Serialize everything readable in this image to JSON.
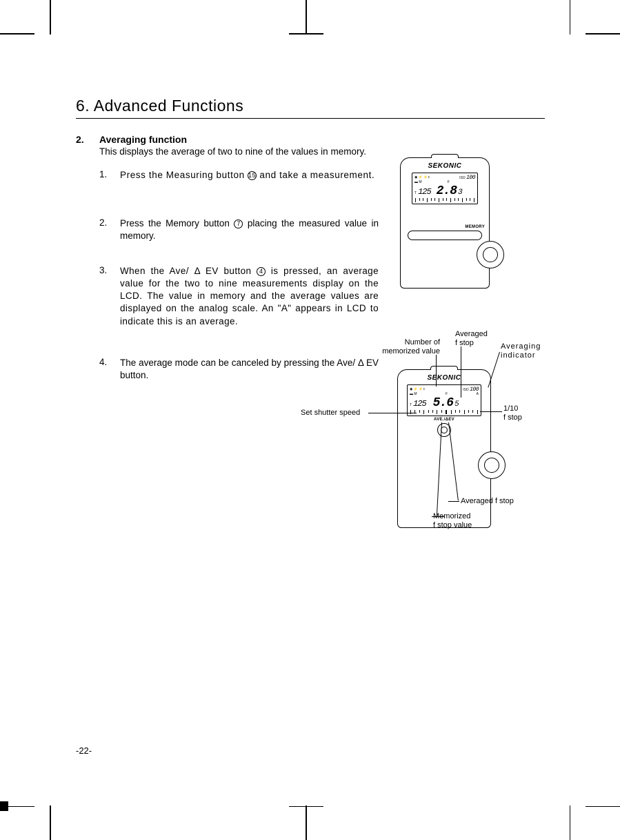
{
  "chapter": "6.  Advanced Functions",
  "section": {
    "num": "2.",
    "title": "Averaging function",
    "intro": "This displays the average of two to nine of the values in memory."
  },
  "steps": [
    {
      "num": "1.",
      "pre": "Press the Measuring button ",
      "ref": "15",
      "post": "  and take a measurement.",
      "spacing": "0.6px"
    },
    {
      "num": "2.",
      "pre": "Press the Memory button ",
      "ref": "7",
      "post": "  placing the measured value in memory.",
      "spacing": "0px"
    },
    {
      "num": "3.",
      "pre": "When the Ave/ Δ  EV button ",
      "ref": "4",
      "post": " is pressed, an average value for the two to nine measurements display on the LCD. The value in memory and the average values are displayed on the analog scale. An \"A\" appears in LCD to indicate this is an average.",
      "spacing": "0.4px"
    },
    {
      "num": "4.",
      "pre": "The average mode can be canceled by pressing the Ave/ Δ  EV button.",
      "ref": "",
      "post": "",
      "spacing": "0px"
    }
  ],
  "device1": {
    "brand": "SEKONIC",
    "iso_label": "ISO",
    "iso_value": "100",
    "t_label": "T",
    "t_value": "125",
    "f_label": "F",
    "f_value": "2.8",
    "f_sub": "3",
    "m_label": "M",
    "btn_label": "MEMORY"
  },
  "device2": {
    "brand": "SEKONIC",
    "iso_label": "ISO",
    "iso_value": "100",
    "t_label": "T",
    "t_value": "125",
    "f_label": "F",
    "f_value": "5.6",
    "f_sub": "5",
    "m_label": "M",
    "a_label": "A",
    "btn_label": "AVE./ΔEV"
  },
  "callouts": {
    "num_mem": "Number of\nmemorized value",
    "avg_fstop_top": "Averaged\nf stop",
    "avg_ind": "Averaging\nindicator",
    "shutter": "Set shutter speed",
    "tenth": "1/10\nf stop",
    "avg_fstop_bot": "Averaged f stop",
    "mem_fstop": "Memorized\n f stop value"
  },
  "page_number": "-22-",
  "colors": {
    "text": "#000000",
    "bg": "#ffffff"
  }
}
